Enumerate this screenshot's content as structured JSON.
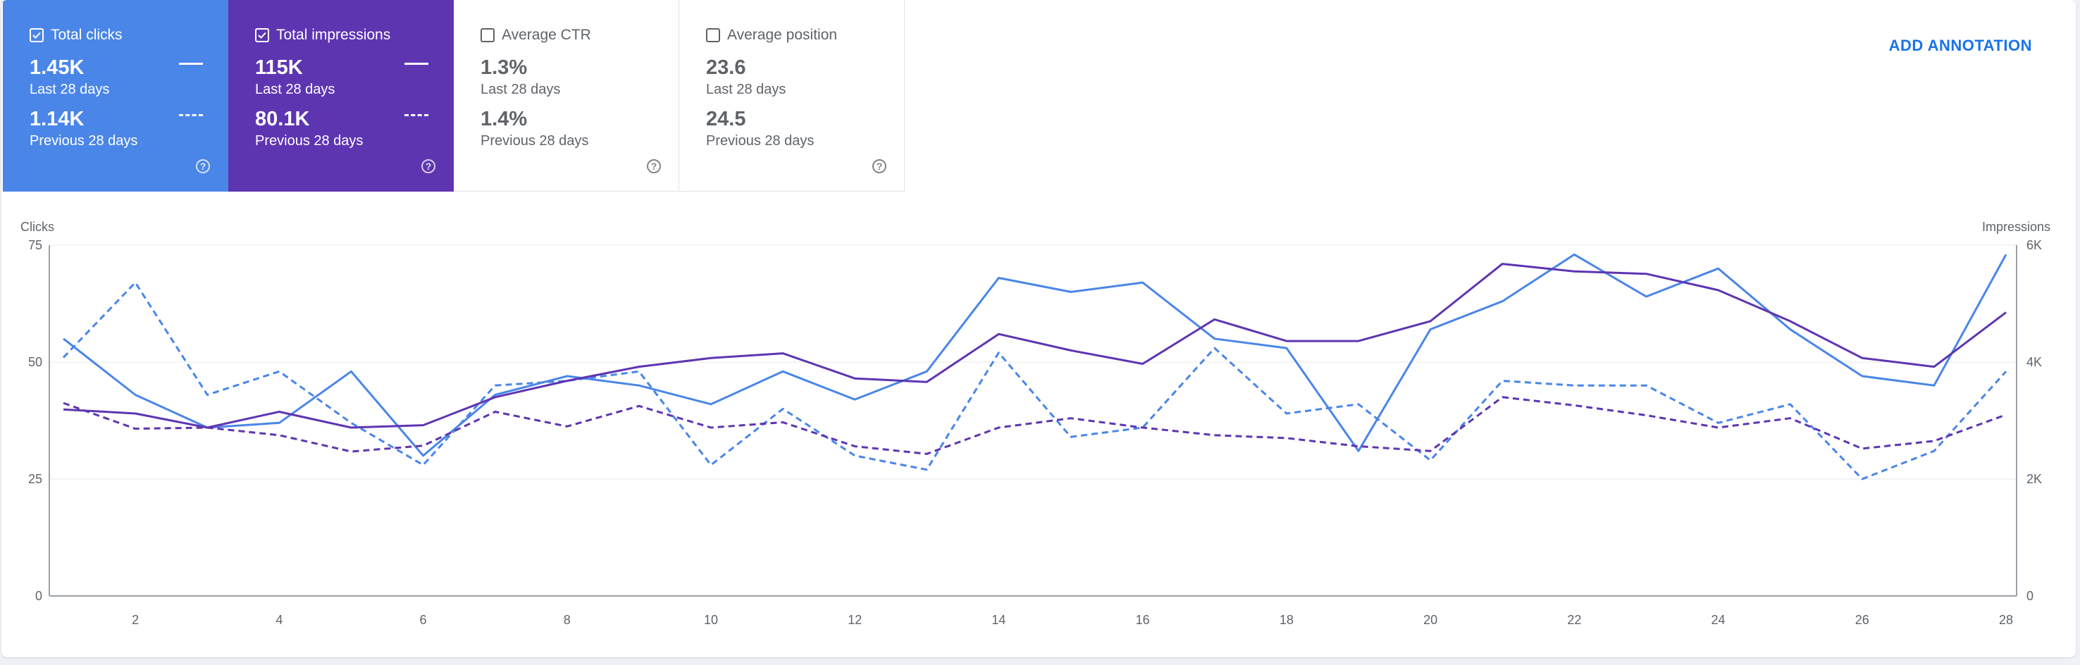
{
  "metrics": [
    {
      "name": "Total clicks",
      "checked": true,
      "value": "1.45K",
      "period": "Last 28 days",
      "prev_value": "1.14K",
      "prev_period": "Previous 28 days",
      "help": "?"
    },
    {
      "name": "Total impressions",
      "checked": true,
      "value": "115K",
      "period": "Last 28 days",
      "prev_value": "80.1K",
      "prev_period": "Previous 28 days",
      "help": "?"
    },
    {
      "name": "Average CTR",
      "checked": false,
      "value": "1.3%",
      "period": "Last 28 days",
      "prev_value": "1.4%",
      "prev_period": "Previous 28 days",
      "help": "?"
    },
    {
      "name": "Average position",
      "checked": false,
      "value": "23.6",
      "period": "Last 28 days",
      "prev_value": "24.5",
      "prev_period": "Previous 28 days",
      "help": "?"
    }
  ],
  "add_annotation_label": "ADD ANNOTATION",
  "colors": {
    "clicks": "#4a86e8",
    "impressions": "#5e35b1",
    "grid": "#e8eaed",
    "axis": "#5f6368"
  },
  "chart_data": {
    "type": "line",
    "x": [
      1,
      2,
      3,
      4,
      5,
      6,
      7,
      8,
      9,
      10,
      11,
      12,
      13,
      14,
      15,
      16,
      17,
      18,
      19,
      20,
      21,
      22,
      23,
      24,
      25,
      26,
      27,
      28
    ],
    "x_ticks": [
      2,
      4,
      6,
      8,
      10,
      12,
      14,
      16,
      18,
      20,
      22,
      24,
      26,
      28
    ],
    "y_left": {
      "label": "Clicks",
      "range": [
        0,
        75
      ],
      "ticks": [
        0,
        25,
        50,
        75
      ]
    },
    "y_right": {
      "label": "Impressions",
      "range": [
        0,
        6000
      ],
      "ticks": [
        0,
        2000,
        4000,
        6000
      ],
      "tick_labels": [
        "0",
        "2K",
        "4K",
        "6K"
      ]
    },
    "grid": true,
    "series": [
      {
        "key": "clicks_current",
        "axis": "left",
        "style": "solid",
        "color": "#4a86e8",
        "values": [
          55,
          43,
          36,
          37,
          48,
          30,
          43,
          47,
          45,
          41,
          48,
          42,
          48,
          68,
          65,
          67,
          55,
          53,
          31,
          57,
          63,
          73,
          64,
          70,
          57,
          47,
          45,
          73
        ]
      },
      {
        "key": "clicks_previous",
        "axis": "left",
        "style": "dashed",
        "color": "#4a86e8",
        "values": [
          51,
          67,
          43,
          48,
          37,
          28,
          45,
          46,
          48,
          28,
          40,
          30,
          27,
          52,
          34,
          36,
          53,
          39,
          41,
          29,
          46,
          45,
          45,
          37,
          41,
          25,
          31,
          48
        ]
      },
      {
        "key": "impressions_current",
        "axis": "right",
        "style": "solid",
        "color": "#5e35b1",
        "values": [
          3190,
          3120,
          2880,
          3150,
          2880,
          2920,
          3400,
          3680,
          3920,
          4070,
          4150,
          3720,
          3660,
          4480,
          4200,
          3970,
          4730,
          4360,
          4360,
          4700,
          5680,
          5550,
          5510,
          5230,
          4700,
          4070,
          3920,
          4850
        ]
      },
      {
        "key": "impressions_previous",
        "axis": "right",
        "style": "dashed",
        "color": "#5e35b1",
        "values": [
          3300,
          2860,
          2880,
          2750,
          2470,
          2570,
          3150,
          2900,
          3250,
          2880,
          2970,
          2560,
          2430,
          2880,
          3040,
          2880,
          2750,
          2700,
          2560,
          2480,
          3400,
          3260,
          3090,
          2880,
          3040,
          2520,
          2650,
          3100
        ]
      }
    ]
  }
}
